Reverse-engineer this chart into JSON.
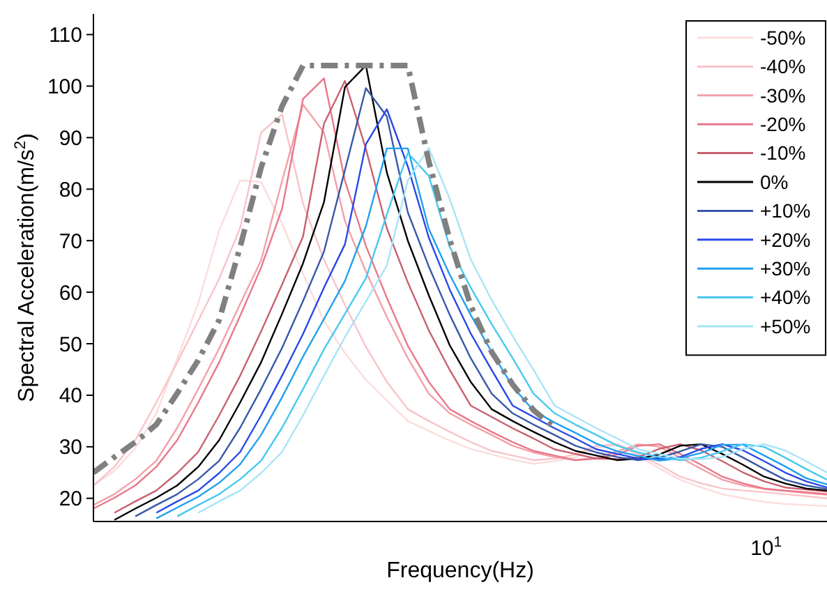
{
  "chart_data": {
    "type": "line",
    "xlabel": "Frequency(Hz)",
    "ylabel": "Spectral Acceleration(m/s$^{2}$)",
    "ylim": [
      15.5,
      114
    ],
    "categories": [
      null,
      null,
      null,
      null,
      null,
      null,
      null,
      null,
      null,
      null,
      null,
      null,
      null,
      null,
      null,
      null,
      null,
      null,
      null,
      null,
      null,
      null,
      null,
      null,
      null,
      null,
      null,
      null,
      null,
      null,
      null,
      null,
      null,
      null,
      null,
      null
    ],
    "yticks": [
      20,
      30,
      40,
      50,
      60,
      70,
      80,
      90,
      100,
      110
    ],
    "legend": "top right",
    "line_style": "solid",
    "annotations": [
      "10$^{1}$"
    ],
    "series": [
      {
        "name": "-50%",
        "color": "#fcdcdc",
        "values": [
          22.5,
          25.3,
          29.7,
          36.5,
          47.1,
          57.9,
          72.0,
          81.7,
          81.4,
          73.3,
          63.6,
          54.4,
          48.2,
          43,
          39,
          35,
          33.1,
          31.2,
          29.6,
          28.5,
          27.5,
          26.7,
          27.2,
          28,
          29.8,
          30.3,
          28.3,
          25.8,
          23.6,
          22.1,
          20.8,
          20.0,
          19.3,
          18.9,
          18.7,
          18.5
        ]
      },
      {
        "name": "-40%",
        "color": "#f8c4c8",
        "values": [
          22.5,
          26.1,
          31.3,
          38.6,
          46.4,
          54.5,
          62.6,
          72.5,
          91.0,
          94.5,
          77.2,
          66.3,
          57.5,
          49.4,
          42.6,
          37.3,
          35.0,
          32.9,
          30.9,
          29.2,
          28.3,
          27.4,
          27.7,
          28.5,
          30.2,
          30.5,
          28.6,
          26.5,
          24.2,
          22.9,
          21.9,
          21.5,
          21.2,
          20.8,
          20.4,
          20.0
        ]
      },
      {
        "name": "-30%",
        "color": "#f4a0a8",
        "values": [
          18.7,
          20.8,
          23.7,
          27.3,
          33.7,
          41.2,
          49.1,
          57.7,
          66.2,
          81.6,
          96.4,
          91.0,
          73.8,
          64.0,
          55.2,
          47.2,
          40.3,
          36.5,
          34.3,
          32.3,
          30.2,
          28.9,
          28.0,
          27.4,
          27.9,
          29.1,
          30.5,
          30.0,
          27.9,
          25.7,
          23.6,
          22.5,
          21.8,
          21.4,
          21.0,
          20.7
        ]
      },
      {
        "name": "-20%",
        "color": "#e8788a",
        "values": [
          18.0,
          20.1,
          22.5,
          26.1,
          31.3,
          38.6,
          46.4,
          55.4,
          64.8,
          76.2,
          97.5,
          101.5,
          81.6,
          69.0,
          58.9,
          49.6,
          42.6,
          37.3,
          35.0,
          32.9,
          30.9,
          29.2,
          28.3,
          27.4,
          27.7,
          28.5,
          30.2,
          30.5,
          28.6,
          26.5,
          24.2,
          22.9,
          21.9,
          21.5,
          21.2,
          20.8
        ]
      },
      {
        "name": "-10%",
        "color": "#c86070",
        "values": [
          null,
          17.2,
          19.4,
          21.5,
          24.9,
          29.0,
          36.1,
          43.8,
          52.4,
          61.5,
          70.8,
          92.7,
          101.0,
          87.8,
          72.4,
          61.9,
          52.6,
          44.9,
          38,
          35.8,
          33.6,
          31.6,
          29.5,
          28.6,
          27.7,
          27.6,
          28,
          29.6,
          30.5,
          29.3,
          27.2,
          25.0,
          23.3,
          22.1,
          21.7,
          21.3
        ]
      },
      {
        "name": "0%",
        "color": "#000000",
        "values": [
          null,
          15.8,
          18.0,
          20.1,
          22.5,
          26.1,
          31.3,
          38.6,
          46.4,
          55.8,
          65.6,
          77.5,
          99.8,
          104,
          83.2,
          70,
          59.4,
          49.7,
          42.6,
          37.3,
          35.0,
          32.9,
          30.9,
          29.2,
          28.3,
          27.4,
          27.7,
          28.5,
          30.2,
          30.5,
          28.6,
          26.5,
          24.2,
          22.9,
          21.9,
          21.5
        ]
      },
      {
        "name": "+10%",
        "color": "#3858a8",
        "values": [
          null,
          null,
          16.5,
          18.7,
          20.8,
          23.7,
          27.3,
          33.7,
          41.2,
          49.2,
          58.3,
          67.9,
          83.7,
          99.6,
          94.1,
          75.5,
          65.0,
          55.6,
          47.2,
          40.3,
          36.5,
          34.3,
          32.3,
          30.2,
          28.9,
          28.0,
          27.4,
          27.9,
          29.1,
          30.5,
          30.0,
          27.9,
          25.7,
          23.6,
          22.5,
          21.8
        ]
      },
      {
        "name": "+20%",
        "color": "#2848e8",
        "values": [
          null,
          null,
          null,
          17.2,
          19.4,
          21.5,
          24.9,
          29.0,
          36.1,
          43.8,
          51.9,
          60.9,
          69.3,
          88.7,
          95.5,
          84.4,
          70.6,
          60.5,
          52.0,
          44.9,
          38,
          35.8,
          33.6,
          31.6,
          29.5,
          28.6,
          27.7,
          27.6,
          28,
          29.6,
          30.5,
          29.3,
          27.2,
          25.0,
          23.3,
          22.1
        ]
      },
      {
        "name": "+30%",
        "color": "#20a0f0",
        "values": [
          null,
          null,
          null,
          16.1,
          18.2,
          20.3,
          23.0,
          26.6,
          32.3,
          39.6,
          47.5,
          54.8,
          62.2,
          72.8,
          87.9,
          87.9,
          72.3,
          63.4,
          55.6,
          48.4,
          41.7,
          37.0,
          34.7,
          32.7,
          30.6,
          29.1,
          28.2,
          27.3,
          27.8,
          28.8,
          30.4,
          30.4,
          28.3,
          26.2,
          23.9,
          22.7
        ]
      },
      {
        "name": "+40%",
        "color": "#48c8f0",
        "values": [
          null,
          null,
          null,
          null,
          16.5,
          18.7,
          20.8,
          23.7,
          27.3,
          33.7,
          41.2,
          48.9,
          55.8,
          62.7,
          75.1,
          87.0,
          82.6,
          68.8,
          60.9,
          53.8,
          47.2,
          40.3,
          36.5,
          34.3,
          32.3,
          30.2,
          28.9,
          28.0,
          27.4,
          27.9,
          29.1,
          30.5,
          30.0,
          27.9,
          25.7,
          23.6
        ]
      },
      {
        "name": "+50%",
        "color": "#a8e4f8",
        "values": [
          null,
          null,
          null,
          null,
          null,
          17.2,
          19.4,
          21.5,
          24.9,
          29.0,
          36.1,
          43.8,
          51.3,
          58.2,
          65.2,
          81.7,
          88.0,
          78.1,
          66.4,
          58.5,
          51.5,
          44.9,
          38,
          35.8,
          33.6,
          31.6,
          29.5,
          28.6,
          27.7,
          27.6,
          28,
          29.6,
          30.5,
          29.3,
          27.2,
          25.0
        ]
      },
      {
        "color": "#808080",
        "line_style": "dashed",
        "values": [
          25,
          28.0,
          30.9,
          34.3,
          40.4,
          46.8,
          54.6,
          68.8,
          84.2,
          96.1,
          104,
          104,
          104,
          104,
          104,
          104,
          85.4,
          70.2,
          57.4,
          48.4,
          42.1,
          37.1,
          33.7,
          null,
          null,
          null,
          null,
          null,
          null,
          null,
          null,
          null,
          null,
          null,
          null,
          null
        ]
      }
    ]
  }
}
